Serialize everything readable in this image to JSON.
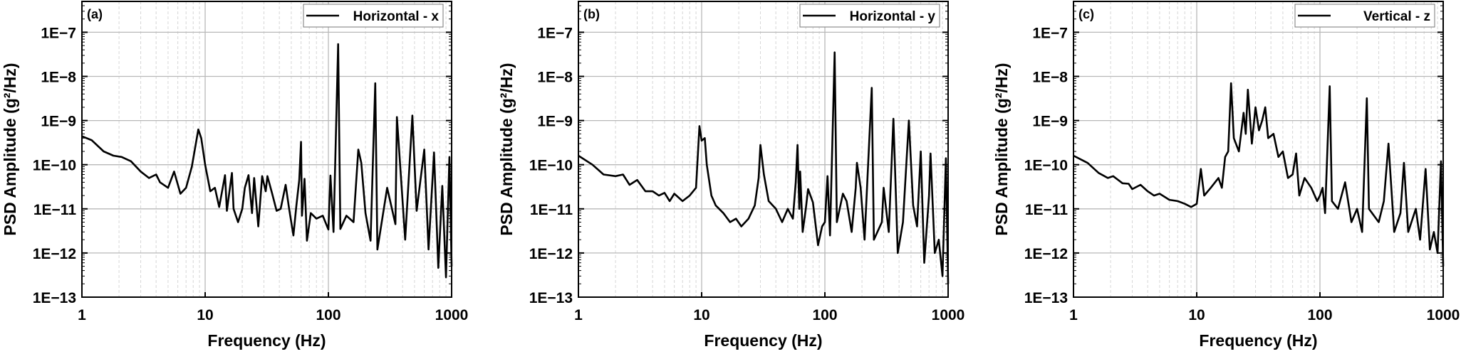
{
  "chart_data": [
    {
      "type": "line",
      "panel_label": "(a)",
      "xlabel": "Frequency (Hz)",
      "ylabel": "PSD Amplitude (g²/Hz)",
      "x_scale": "log",
      "y_scale": "log",
      "xlim": [
        1,
        1000
      ],
      "ylim": [
        1e-13,
        5e-07
      ],
      "x_ticks": [
        "1",
        "10",
        "100",
        "1000"
      ],
      "y_ticks": [
        "1E−13",
        "1E−12",
        "1E−11",
        "1E−10",
        "1E−9",
        "1E−8",
        "1E−7"
      ],
      "grid": true,
      "legend_position": "top-right",
      "series": [
        {
          "name": "Horizontal - x",
          "color": "#000000",
          "points": [
            [
              1,
              4.4e-10
            ],
            [
              1.2,
              3.6e-10
            ],
            [
              1.5,
              2e-10
            ],
            [
              1.8,
              1.6e-10
            ],
            [
              2.1,
              1.5e-10
            ],
            [
              2.5,
              1.2e-10
            ],
            [
              3,
              7e-11
            ],
            [
              3.5,
              5e-11
            ],
            [
              4,
              6e-11
            ],
            [
              4.3,
              4e-11
            ],
            [
              5,
              3e-11
            ],
            [
              5.6,
              7e-11
            ],
            [
              6.3,
              2.2e-11
            ],
            [
              7,
              3e-11
            ],
            [
              7.8,
              9e-11
            ],
            [
              8.8,
              6.3e-10
            ],
            [
              9.3,
              4e-10
            ],
            [
              10,
              1e-10
            ],
            [
              11,
              2.5e-11
            ],
            [
              12,
              3e-11
            ],
            [
              13,
              1.1e-11
            ],
            [
              14.5,
              5.8e-11
            ],
            [
              15,
              9e-12
            ],
            [
              16.5,
              6.5e-11
            ],
            [
              17,
              1e-11
            ],
            [
              18.5,
              5e-12
            ],
            [
              20,
              1e-11
            ],
            [
              21,
              3e-11
            ],
            [
              22.5,
              5.8e-11
            ],
            [
              24,
              8e-12
            ],
            [
              25,
              5e-11
            ],
            [
              27,
              4e-12
            ],
            [
              29,
              5.5e-11
            ],
            [
              31,
              2.5e-11
            ],
            [
              32,
              5.5e-11
            ],
            [
              35,
              2.2e-11
            ],
            [
              38,
              9e-12
            ],
            [
              41,
              1e-11
            ],
            [
              45,
              3.5e-11
            ],
            [
              48,
              1e-11
            ],
            [
              52,
              2.5e-12
            ],
            [
              55,
              1.2e-11
            ],
            [
              58,
              4.5e-11
            ],
            [
              60,
              3.3e-10
            ],
            [
              61,
              7e-12
            ],
            [
              64,
              4.8e-11
            ],
            [
              67,
              1.9e-12
            ],
            [
              72,
              8e-12
            ],
            [
              80,
              6e-12
            ],
            [
              90,
              7e-12
            ],
            [
              100,
              3.4e-12
            ],
            [
              104,
              5.7e-11
            ],
            [
              110,
              3e-12
            ],
            [
              120,
              5.4e-08
            ],
            [
              125,
              3.5e-12
            ],
            [
              140,
              7e-12
            ],
            [
              160,
              5e-12
            ],
            [
              175,
              2.2e-10
            ],
            [
              185,
              1.1e-10
            ],
            [
              200,
              8e-12
            ],
            [
              220,
              1.9e-12
            ],
            [
              240,
              7e-09
            ],
            [
              250,
              1.2e-12
            ],
            [
              300,
              3e-11
            ],
            [
              350,
              4.5e-12
            ],
            [
              360,
              1.2e-09
            ],
            [
              420,
              2e-12
            ],
            [
              480,
              1.3e-09
            ],
            [
              520,
              9e-12
            ],
            [
              600,
              2.2e-10
            ],
            [
              650,
              1.2e-12
            ],
            [
              720,
              1.9e-10
            ],
            [
              780,
              4.6e-13
            ],
            [
              840,
              3.3e-11
            ],
            [
              900,
              2.8e-13
            ],
            [
              960,
              1.5e-10
            ],
            [
              1000,
              5e-13
            ]
          ]
        }
      ]
    },
    {
      "type": "line",
      "panel_label": "(b)",
      "xlabel": "Frequency (Hz)",
      "ylabel": "PSD Amplitude (g²/Hz)",
      "x_scale": "log",
      "y_scale": "log",
      "xlim": [
        1,
        1000
      ],
      "ylim": [
        1e-13,
        5e-07
      ],
      "x_ticks": [
        "1",
        "10",
        "100",
        "1000"
      ],
      "y_ticks": [
        "1E−13",
        "1E−12",
        "1E−11",
        "1E−10",
        "1E−9",
        "1E−8",
        "1E−7"
      ],
      "grid": true,
      "legend_position": "top-right",
      "series": [
        {
          "name": "Horizontal - y",
          "color": "#000000",
          "points": [
            [
              1,
              1.6e-10
            ],
            [
              1.3,
              1e-10
            ],
            [
              1.6,
              6e-11
            ],
            [
              2,
              5.5e-11
            ],
            [
              2.3,
              6e-11
            ],
            [
              2.6,
              3.5e-11
            ],
            [
              3,
              4.5e-11
            ],
            [
              3.5,
              2.5e-11
            ],
            [
              4,
              2.5e-11
            ],
            [
              4.5,
              2e-11
            ],
            [
              5,
              2.3e-11
            ],
            [
              5.5,
              1.5e-11
            ],
            [
              6,
              2.2e-11
            ],
            [
              7,
              1.5e-11
            ],
            [
              8,
              2e-11
            ],
            [
              9,
              3e-11
            ],
            [
              9.6,
              7.5e-10
            ],
            [
              10,
              3.5e-10
            ],
            [
              10.6,
              4e-10
            ],
            [
              11,
              1e-10
            ],
            [
              12,
              2e-11
            ],
            [
              13,
              1.2e-11
            ],
            [
              15,
              8e-12
            ],
            [
              17,
              5e-12
            ],
            [
              19,
              6e-12
            ],
            [
              21,
              4e-12
            ],
            [
              24,
              6e-12
            ],
            [
              27,
              1.2e-11
            ],
            [
              29,
              5e-11
            ],
            [
              30,
              2.8e-10
            ],
            [
              32,
              6e-11
            ],
            [
              35,
              1.5e-11
            ],
            [
              40,
              1e-11
            ],
            [
              45,
              5e-12
            ],
            [
              50,
              1e-11
            ],
            [
              55,
              6e-12
            ],
            [
              58,
              4e-11
            ],
            [
              60,
              2.8e-10
            ],
            [
              62,
              1e-11
            ],
            [
              63,
              7e-11
            ],
            [
              66,
              3e-12
            ],
            [
              70,
              1e-11
            ],
            [
              73,
              2.8e-11
            ],
            [
              80,
              1.4e-11
            ],
            [
              88,
              1.5e-12
            ],
            [
              95,
              4e-12
            ],
            [
              100,
              5e-12
            ],
            [
              105,
              5.5e-11
            ],
            [
              110,
              2.5e-12
            ],
            [
              120,
              3.5e-08
            ],
            [
              125,
              5e-12
            ],
            [
              140,
              2.2e-11
            ],
            [
              150,
              1.5e-11
            ],
            [
              165,
              3e-12
            ],
            [
              178,
              3e-11
            ],
            [
              182,
              1.1e-10
            ],
            [
              195,
              3e-11
            ],
            [
              210,
              2e-12
            ],
            [
              240,
              5.5e-09
            ],
            [
              250,
              2e-12
            ],
            [
              290,
              5e-12
            ],
            [
              300,
              3e-11
            ],
            [
              330,
              3e-12
            ],
            [
              360,
              1.1e-09
            ],
            [
              390,
              1e-12
            ],
            [
              430,
              5e-12
            ],
            [
              480,
              1e-09
            ],
            [
              520,
              1.2e-11
            ],
            [
              560,
              4e-12
            ],
            [
              600,
              2e-10
            ],
            [
              640,
              6e-13
            ],
            [
              700,
              2e-11
            ],
            [
              720,
              1.8e-10
            ],
            [
              780,
              1e-12
            ],
            [
              840,
              2e-12
            ],
            [
              900,
              3e-13
            ],
            [
              960,
              1.4e-10
            ],
            [
              1000,
              2e-13
            ]
          ]
        }
      ]
    },
    {
      "type": "line",
      "panel_label": "(c)",
      "xlabel": "Frequency (Hz)",
      "ylabel": "PSD Amplitude (g²/Hz)",
      "x_scale": "log",
      "y_scale": "log",
      "xlim": [
        1,
        1000
      ],
      "ylim": [
        1e-13,
        5e-07
      ],
      "x_ticks": [
        "1",
        "10",
        "100",
        "1000"
      ],
      "y_ticks": [
        "1E−13",
        "1E−12",
        "1E−11",
        "1E−10",
        "1E−9",
        "1E−8",
        "1E−7"
      ],
      "grid": true,
      "legend_position": "top-right",
      "series": [
        {
          "name": "Vertical - z",
          "color": "#000000",
          "points": [
            [
              1,
              1.6e-10
            ],
            [
              1.3,
              1.1e-10
            ],
            [
              1.6,
              6.5e-11
            ],
            [
              1.9,
              5e-11
            ],
            [
              2.1,
              5.5e-11
            ],
            [
              2.5,
              3.8e-11
            ],
            [
              2.8,
              3.7e-11
            ],
            [
              3,
              2.8e-11
            ],
            [
              3.5,
              3.5e-11
            ],
            [
              4,
              2.5e-11
            ],
            [
              4.5,
              2e-11
            ],
            [
              5,
              2.2e-11
            ],
            [
              6,
              1.6e-11
            ],
            [
              7,
              1.5e-11
            ],
            [
              8,
              1.3e-11
            ],
            [
              9,
              1.1e-11
            ],
            [
              10,
              1.3e-11
            ],
            [
              10.8,
              8e-11
            ],
            [
              11.5,
              2e-11
            ],
            [
              13,
              3e-11
            ],
            [
              15,
              5e-11
            ],
            [
              16,
              3e-11
            ],
            [
              17,
              1.5e-10
            ],
            [
              18,
              2e-10
            ],
            [
              19,
              7e-09
            ],
            [
              20,
              4e-10
            ],
            [
              22,
              2e-10
            ],
            [
              24,
              1.5e-09
            ],
            [
              25,
              5e-10
            ],
            [
              26,
              5e-09
            ],
            [
              28,
              3e-10
            ],
            [
              30,
              2e-09
            ],
            [
              32,
              6e-10
            ],
            [
              34,
              1e-09
            ],
            [
              36,
              2e-09
            ],
            [
              38,
              4e-10
            ],
            [
              42,
              5e-10
            ],
            [
              46,
              1.5e-10
            ],
            [
              50,
              2e-10
            ],
            [
              55,
              5e-11
            ],
            [
              60,
              6e-11
            ],
            [
              64,
              1.8e-10
            ],
            [
              68,
              2e-11
            ],
            [
              75,
              5e-11
            ],
            [
              85,
              3e-11
            ],
            [
              95,
              1.5e-11
            ],
            [
              100,
              2e-11
            ],
            [
              105,
              3e-11
            ],
            [
              110,
              8e-12
            ],
            [
              120,
              6e-09
            ],
            [
              125,
              1.5e-11
            ],
            [
              140,
              1e-11
            ],
            [
              160,
              4e-11
            ],
            [
              180,
              5e-12
            ],
            [
              200,
              1e-11
            ],
            [
              220,
              3e-12
            ],
            [
              240,
              3.2e-09
            ],
            [
              250,
              1e-11
            ],
            [
              300,
              5e-12
            ],
            [
              330,
              1.5e-11
            ],
            [
              360,
              3e-10
            ],
            [
              400,
              3e-12
            ],
            [
              450,
              8e-12
            ],
            [
              480,
              1.1e-10
            ],
            [
              520,
              3e-12
            ],
            [
              600,
              1e-11
            ],
            [
              650,
              2e-12
            ],
            [
              720,
              8e-11
            ],
            [
              780,
              1.2e-12
            ],
            [
              840,
              3e-12
            ],
            [
              900,
              1e-12
            ],
            [
              960,
              1.2e-10
            ],
            [
              1000,
              5e-13
            ]
          ]
        }
      ]
    }
  ]
}
